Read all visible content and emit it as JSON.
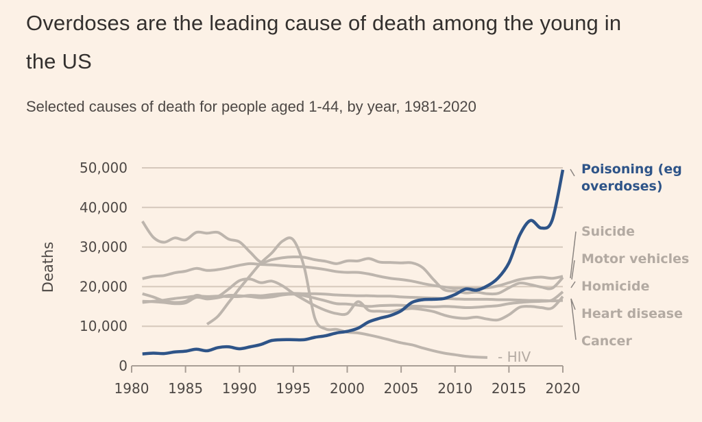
{
  "header": {
    "title": "Overdoses are the leading cause of death among the young in the US",
    "subtitle": "Selected causes of death for people aged 1-44, by year, 1981-2020"
  },
  "colors": {
    "background": "#fcf1e6",
    "highlight": "#2e5488",
    "muted": "#bdb5ad",
    "gridline": "#d5c8bb",
    "muted_label": "#b3aaa2"
  },
  "chart_data": {
    "type": "line",
    "title": "Overdoses are the leading cause of death among the young in the US",
    "subtitle": "Selected causes of death for people aged 1-44, by year, 1981-2020",
    "xlabel": "",
    "ylabel": "Deaths",
    "xlim": [
      1980,
      2020
    ],
    "ylim": [
      0,
      50000
    ],
    "xticks": [
      1980,
      1985,
      1990,
      1995,
      2000,
      2005,
      2010,
      2015,
      2020
    ],
    "xtick_labels": [
      "1980",
      "1985",
      "1990",
      "1995",
      "2000",
      "2005",
      "2010",
      "2015",
      "2020"
    ],
    "yticks": [
      0,
      10000,
      20000,
      30000,
      40000,
      50000
    ],
    "ytick_labels": [
      "0",
      "10,000",
      "20,000",
      "30,000",
      "40,000",
      "50,000"
    ],
    "grid": true,
    "legend": "direct labels on the right",
    "series": [
      {
        "name": "Motor vehicles",
        "highlight": false,
        "x": [
          1981,
          1982,
          1983,
          1984,
          1985,
          1986,
          1987,
          1988,
          1989,
          1990,
          1991,
          1992,
          1993,
          1994,
          1995,
          1996,
          1997,
          1998,
          1999,
          2000,
          2001,
          2002,
          2003,
          2004,
          2005,
          2006,
          2007,
          2008,
          2009,
          2010,
          2011,
          2012,
          2013,
          2014,
          2015,
          2016,
          2017,
          2018,
          2019,
          2020
        ],
        "y": [
          36500,
          32500,
          31200,
          32300,
          31800,
          33700,
          33500,
          33700,
          32000,
          31300,
          28700,
          26200,
          26800,
          27300,
          27500,
          27400,
          26800,
          26400,
          25800,
          26500,
          26500,
          27100,
          26200,
          26100,
          26000,
          26000,
          24800,
          21800,
          19200,
          18900,
          18400,
          18600,
          18200,
          18300,
          19700,
          20900,
          20500,
          19900,
          19600,
          22300
        ]
      },
      {
        "name": "Suicide",
        "highlight": false,
        "x": [
          1981,
          1982,
          1983,
          1984,
          1985,
          1986,
          1987,
          1988,
          1989,
          1990,
          1991,
          1992,
          1993,
          1994,
          1995,
          1996,
          1997,
          1998,
          1999,
          2000,
          2001,
          2002,
          2003,
          2004,
          2005,
          2006,
          2007,
          2008,
          2009,
          2010,
          2011,
          2012,
          2013,
          2014,
          2015,
          2016,
          2017,
          2018,
          2019,
          2020
        ],
        "y": [
          22000,
          22600,
          22800,
          23500,
          23900,
          24600,
          24100,
          24300,
          24800,
          25400,
          25800,
          25600,
          25500,
          25300,
          25100,
          25000,
          24700,
          24300,
          23800,
          23600,
          23600,
          23200,
          22600,
          22100,
          21800,
          21400,
          20800,
          20300,
          19900,
          19600,
          19600,
          19500,
          19700,
          20200,
          21000,
          21800,
          22200,
          22400,
          22100,
          22600
        ]
      },
      {
        "name": "Homicide",
        "highlight": false,
        "x": [
          1981,
          1982,
          1983,
          1984,
          1985,
          1986,
          1987,
          1988,
          1989,
          1990,
          1991,
          1992,
          1993,
          1994,
          1995,
          1996,
          1997,
          1998,
          1999,
          2000,
          2001,
          2002,
          2003,
          2004,
          2005,
          2006,
          2007,
          2008,
          2009,
          2010,
          2011,
          2012,
          2013,
          2014,
          2015,
          2016,
          2017,
          2018,
          2019,
          2020
        ],
        "y": [
          18200,
          17400,
          16400,
          16000,
          16300,
          17800,
          17200,
          17500,
          19400,
          21500,
          21900,
          21000,
          21400,
          20200,
          18300,
          16700,
          15200,
          14000,
          13200,
          13200,
          16200,
          14000,
          13800,
          13700,
          14200,
          14500,
          14200,
          13700,
          12800,
          12200,
          12000,
          12300,
          11800,
          11600,
          12900,
          14800,
          15000,
          14700,
          14600,
          17500
        ]
      },
      {
        "name": "Heart disease",
        "highlight": false,
        "x": [
          1981,
          1982,
          1983,
          1984,
          1985,
          1986,
          1987,
          1988,
          1989,
          1990,
          1991,
          1992,
          1993,
          1994,
          1995,
          1996,
          1997,
          1998,
          1999,
          2000,
          2001,
          2002,
          2003,
          2004,
          2005,
          2006,
          2007,
          2008,
          2009,
          2010,
          2011,
          2012,
          2013,
          2014,
          2015,
          2016,
          2017,
          2018,
          2019,
          2020
        ],
        "y": [
          16300,
          16200,
          16000,
          15700,
          15900,
          17300,
          16900,
          17200,
          17800,
          17700,
          17500,
          17200,
          17400,
          17900,
          18100,
          17700,
          17100,
          16400,
          15700,
          15600,
          15300,
          15000,
          15200,
          15300,
          15300,
          15100,
          15000,
          14900,
          15000,
          14900,
          14700,
          14800,
          15000,
          15200,
          15700,
          16000,
          16200,
          16300,
          16600,
          18700
        ]
      },
      {
        "name": "Cancer",
        "highlight": false,
        "x": [
          1981,
          1982,
          1983,
          1984,
          1985,
          1986,
          1987,
          1988,
          1989,
          1990,
          1991,
          1992,
          1993,
          1994,
          1995,
          1996,
          1997,
          1998,
          1999,
          2000,
          2001,
          2002,
          2003,
          2004,
          2005,
          2006,
          2007,
          2008,
          2009,
          2010,
          2011,
          2012,
          2013,
          2014,
          2015,
          2016,
          2017,
          2018,
          2019,
          2020
        ],
        "y": [
          16000,
          16300,
          16600,
          17000,
          17300,
          17600,
          17500,
          17600,
          17500,
          17500,
          17800,
          17700,
          18000,
          18200,
          18300,
          18200,
          18200,
          18100,
          17900,
          17800,
          17700,
          17700,
          17600,
          17600,
          17400,
          17300,
          17200,
          17100,
          17000,
          16900,
          16800,
          16800,
          16800,
          16700,
          16700,
          16600,
          16500,
          16500,
          16400,
          16500
        ]
      },
      {
        "name": "HIV",
        "highlight": false,
        "x": [
          1987,
          1988,
          1989,
          1990,
          1991,
          1992,
          1993,
          1994,
          1995,
          1996,
          1997,
          1998,
          1999,
          2000,
          2001,
          2002,
          2003,
          2004,
          2005,
          2006,
          2007,
          2008,
          2009,
          2010,
          2011,
          2012,
          2013
        ],
        "y": [
          10500,
          12500,
          16000,
          19500,
          22800,
          26000,
          28500,
          31500,
          31800,
          25000,
          12000,
          9300,
          9200,
          8500,
          8300,
          7800,
          7200,
          6500,
          5800,
          5300,
          4500,
          3800,
          3200,
          2800,
          2400,
          2200,
          2100
        ]
      },
      {
        "name": "Poisoning (eg overdoses)",
        "highlight": true,
        "x": [
          1981,
          1982,
          1983,
          1984,
          1985,
          1986,
          1987,
          1988,
          1989,
          1990,
          1991,
          1992,
          1993,
          1994,
          1995,
          1996,
          1997,
          1998,
          1999,
          2000,
          2001,
          2002,
          2003,
          2004,
          2005,
          2006,
          2007,
          2008,
          2009,
          2010,
          2011,
          2012,
          2013,
          2014,
          2015,
          2016,
          2017,
          2018,
          2019,
          2020
        ],
        "y": [
          3000,
          3200,
          3100,
          3500,
          3700,
          4200,
          3800,
          4600,
          4800,
          4300,
          4800,
          5400,
          6400,
          6600,
          6600,
          6600,
          7200,
          7600,
          8300,
          8700,
          9500,
          11100,
          12000,
          12700,
          13900,
          16000,
          16700,
          16800,
          17000,
          18000,
          19400,
          19100,
          20200,
          22200,
          26000,
          33000,
          36700,
          34800,
          36700,
          49500
        ]
      }
    ],
    "annotations": [
      {
        "text": "Poisoning (eg",
        "series": "Poisoning (eg overdoses)"
      },
      {
        "text": "overdoses)",
        "series": "Poisoning (eg overdoses)"
      },
      {
        "text": "Suicide",
        "series": "Suicide"
      },
      {
        "text": "Motor vehicles",
        "series": "Motor vehicles"
      },
      {
        "text": "Homicide",
        "series": "Homicide"
      },
      {
        "text": "Heart disease",
        "series": "Heart disease"
      },
      {
        "text": "Cancer",
        "series": "Cancer"
      },
      {
        "text": "- HIV",
        "series": "HIV"
      }
    ]
  }
}
